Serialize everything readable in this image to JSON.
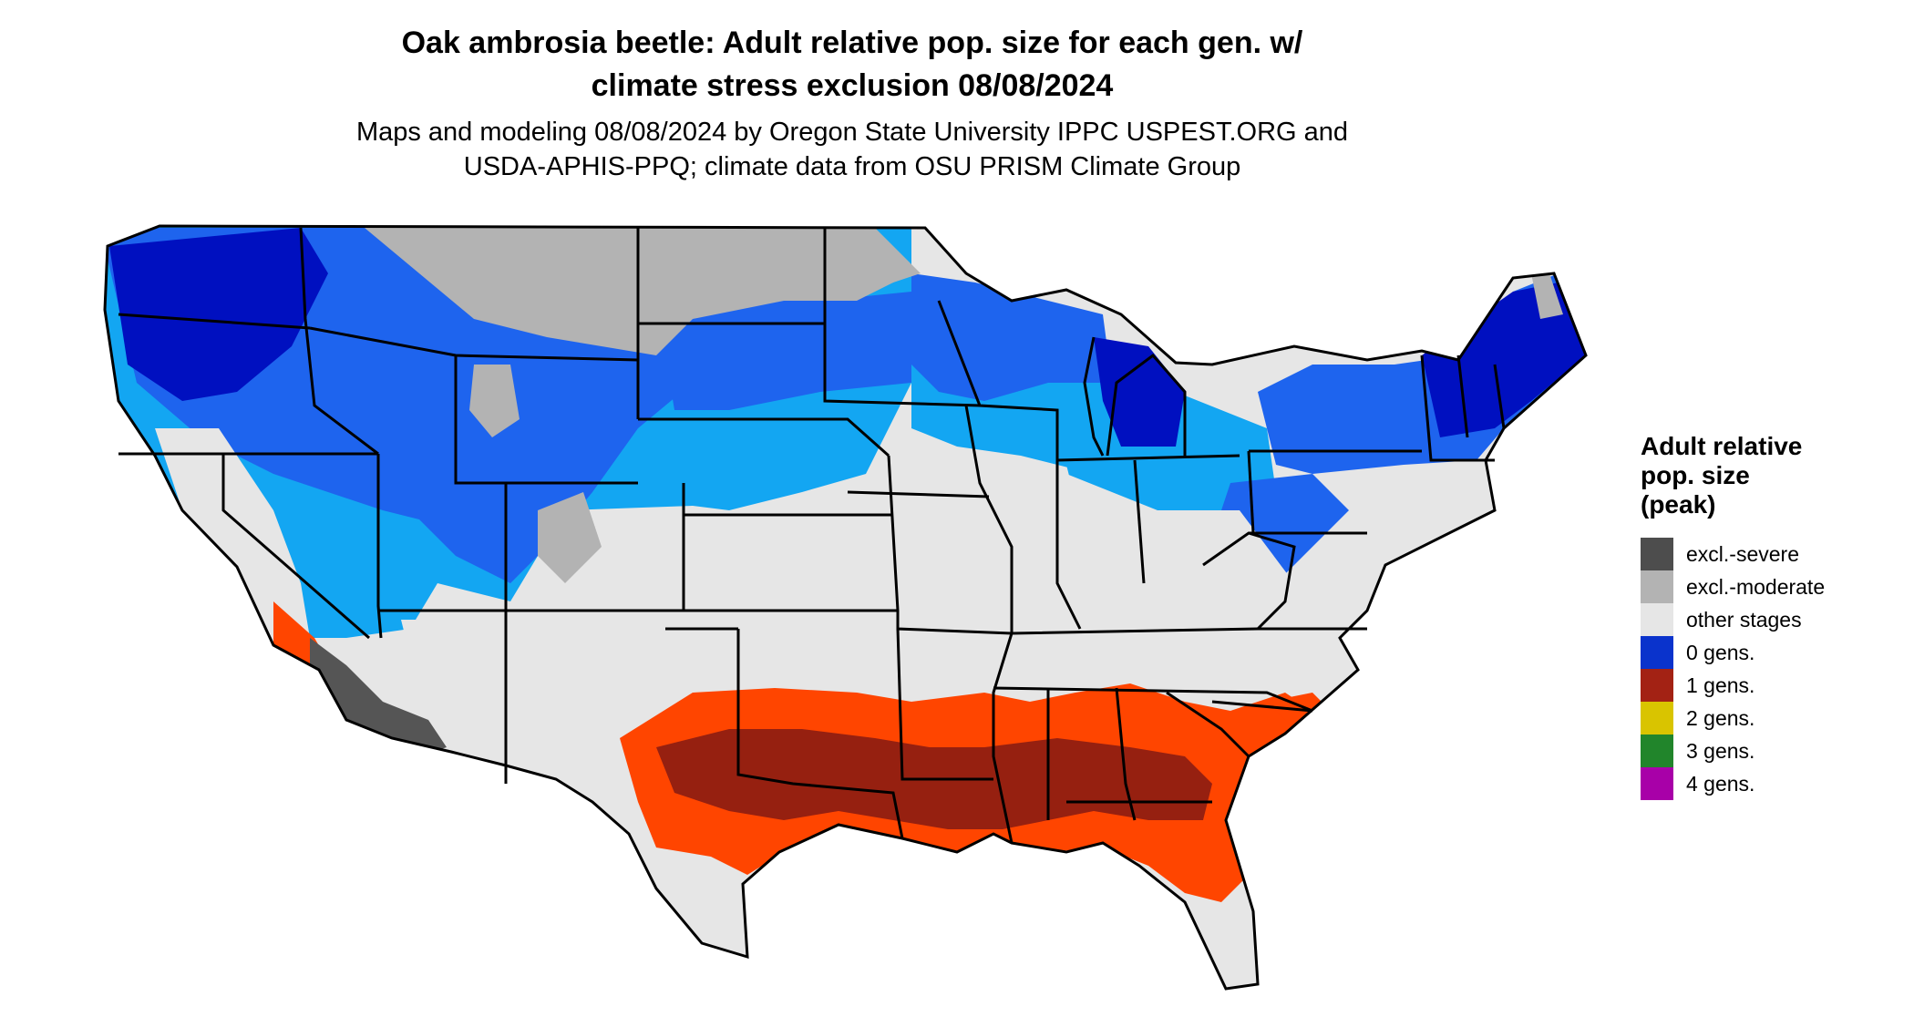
{
  "title": {
    "line1": "Oak ambrosia beetle: Adult relative pop. size for each gen. w/",
    "line2": "climate stress exclusion 08/08/2024"
  },
  "subtitle": {
    "line1": "Maps and modeling 08/08/2024 by Oregon State University IPPC USPEST.ORG and",
    "line2": "USDA-APHIS-PPQ; climate data from OSU PRISM Climate Group"
  },
  "legend": {
    "title_lines": [
      "Adult relative",
      "pop. size",
      "(peak)"
    ],
    "items": [
      {
        "label": "excl.-severe",
        "color": "#4d4d4d"
      },
      {
        "label": "excl.-moderate",
        "color": "#b3b3b3"
      },
      {
        "label": "other stages",
        "color": "#e6e6e6"
      },
      {
        "label": "0 gens.",
        "color": "#0a33cc"
      },
      {
        "label": "1 gens.",
        "color": "#a32214"
      },
      {
        "label": "2 gens.",
        "color": "#d9c400"
      },
      {
        "label": "3 gens.",
        "color": "#21852b"
      },
      {
        "label": "4 gens.",
        "color": "#a800a8"
      }
    ]
  },
  "map_colors": {
    "background": "#e6e6e6",
    "excl_moderate": "#b3b3b3",
    "excl_severe": "#555555",
    "zero_gens_dark": "#0010c0",
    "zero_gens_mid": "#1e64ee",
    "zero_gens_light": "#13a6f2",
    "one_gen_dark": "#962010",
    "one_gen_bright": "#ff4500",
    "boundary": "#000000"
  }
}
